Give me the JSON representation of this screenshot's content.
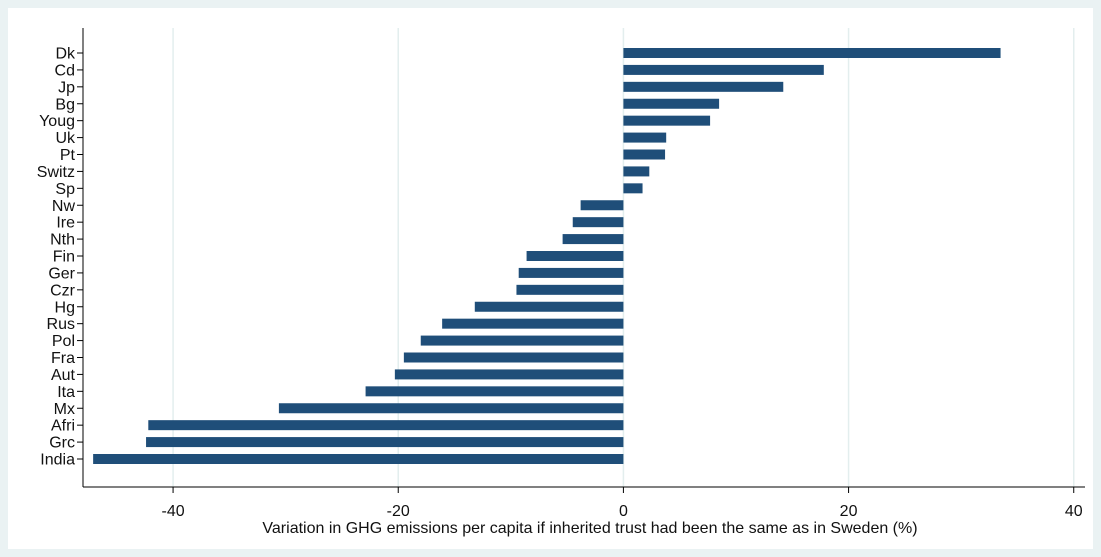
{
  "chart_data": {
    "type": "bar",
    "orientation": "horizontal",
    "title": "",
    "xlabel": "Variation in GHG emissions per capita if inherited trust had been the same as in Sweden (%)",
    "ylabel": "",
    "xlim": [
      -48,
      41
    ],
    "xticks": [
      -40,
      -20,
      0,
      20,
      40
    ],
    "xtick_labels": [
      "-40",
      "-20",
      "0",
      "20",
      "40"
    ],
    "grid": "vertical",
    "categories": [
      "Dk",
      "Cd",
      "Jp",
      "Bg",
      "Youg",
      "Uk",
      "Pt",
      "Switz",
      "Sp",
      "Nw",
      "Ire",
      "Nth",
      "Fin",
      "Ger",
      "Czr",
      "Hg",
      "Rus",
      "Pol",
      "Fra",
      "Aut",
      "Ita",
      "Mx",
      "Afri",
      "Grc",
      "India"
    ],
    "values": [
      33.5,
      17.8,
      14.2,
      8.5,
      7.7,
      3.8,
      3.7,
      2.3,
      1.7,
      -3.8,
      -4.5,
      -5.4,
      -8.6,
      -9.3,
      -9.5,
      -13.2,
      -16.1,
      -18.0,
      -19.5,
      -20.3,
      -22.9,
      -30.6,
      -42.2,
      -42.4,
      -47.1
    ],
    "bar_color": "#1f4e79",
    "grid_color": "#e3eeee"
  }
}
